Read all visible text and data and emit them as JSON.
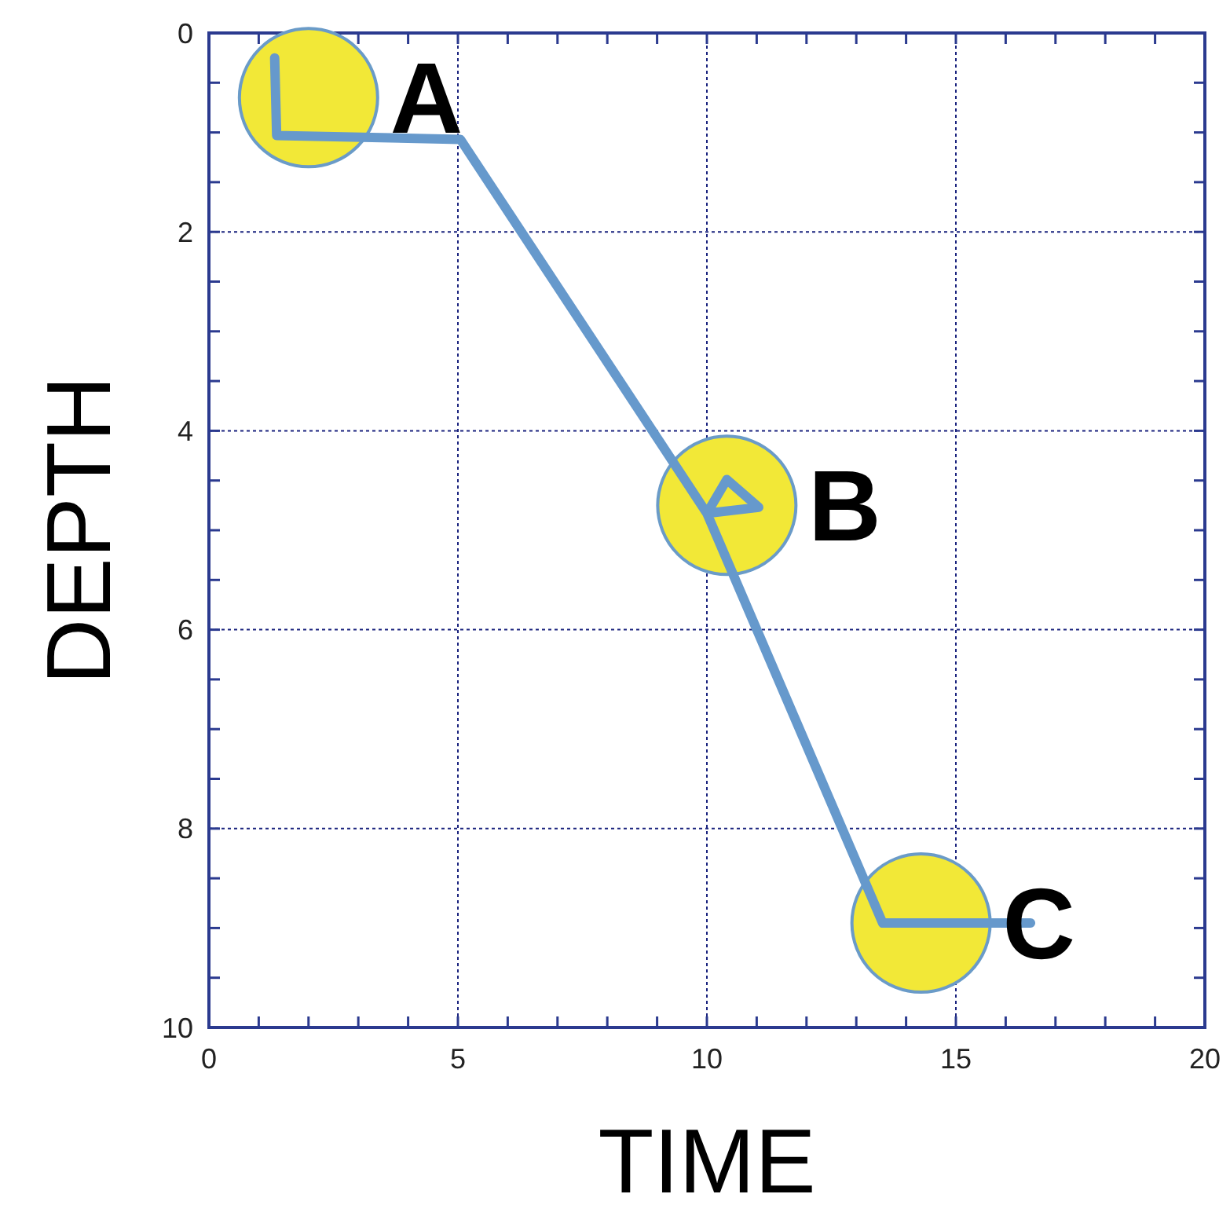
{
  "chart_data": {
    "type": "line",
    "xlabel": "TIME",
    "ylabel": "DEPTH",
    "xlim": [
      0,
      20
    ],
    "ylim": [
      10,
      0
    ],
    "xticks": [
      0,
      {
        "value": 1,
        "label": null
      },
      {
        "value": 2,
        "label": null
      },
      {
        "value": 3,
        "label": null
      },
      {
        "value": 4,
        "label": null
      },
      5,
      {
        "value": 6,
        "label": null
      },
      {
        "value": 7,
        "label": null
      },
      {
        "value": 8,
        "label": null
      },
      {
        "value": 9,
        "label": null
      },
      10,
      {
        "value": 11,
        "label": null
      },
      {
        "value": 12,
        "label": null
      },
      {
        "value": 13,
        "label": null
      },
      {
        "value": 14,
        "label": null
      },
      15,
      {
        "value": 16,
        "label": null
      },
      {
        "value": 17,
        "label": null
      },
      {
        "value": 18,
        "label": null
      },
      {
        "value": 19,
        "label": null
      },
      20
    ],
    "yticks": [
      0,
      {
        "value": 0.5,
        "label": null
      },
      {
        "value": 1,
        "label": null
      },
      {
        "value": 1.5,
        "label": null
      },
      2,
      {
        "value": 2.5,
        "label": null
      },
      {
        "value": 3,
        "label": null
      },
      {
        "value": 3.5,
        "label": null
      },
      4,
      {
        "value": 4.5,
        "label": null
      },
      {
        "value": 5,
        "label": null
      },
      {
        "value": 5.5,
        "label": null
      },
      6,
      {
        "value": 6.5,
        "label": null
      },
      {
        "value": 7,
        "label": null
      },
      {
        "value": 7.5,
        "label": null
      },
      8,
      {
        "value": 8.5,
        "label": null
      },
      {
        "value": 9,
        "label": null
      },
      {
        "value": 9.5,
        "label": null
      },
      10
    ],
    "grid": true,
    "series": [
      {
        "type": "scatter",
        "marker": "circle",
        "color": "#f2e837",
        "x": [
          2.0,
          10.4,
          14.3
        ],
        "values": [
          0.65,
          4.75,
          8.95
        ]
      },
      {
        "color": "#6699cc",
        "marker": "none",
        "line_style": "solid",
        "x": [
          1.32,
          1.36,
          5.05,
          10.0,
          11.04,
          10.4,
          10.0,
          13.53,
          16.5
        ],
        "values": [
          0.25,
          1.03,
          1.07,
          4.83,
          4.77,
          4.49,
          4.83,
          8.95,
          8.95
        ]
      }
    ],
    "annotations": [
      {
        "text": "A",
        "x": 2.0,
        "y": 0.65
      },
      {
        "text": "B",
        "x": 10.4,
        "y": 4.75
      },
      {
        "text": "C",
        "x": 14.3,
        "y": 8.95
      }
    ]
  }
}
